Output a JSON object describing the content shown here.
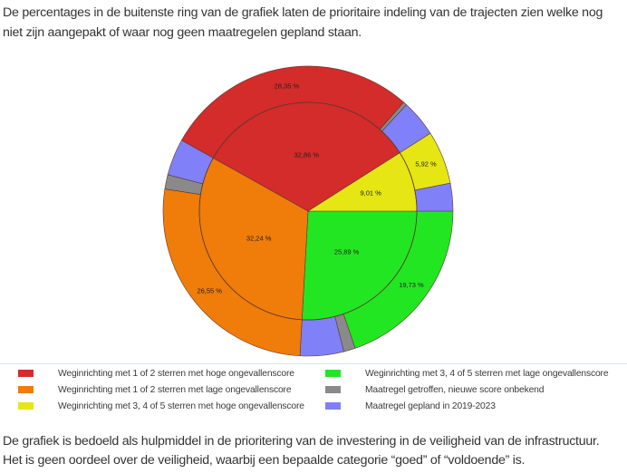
{
  "intro_text": "De percentages in de buitenste ring van de grafiek laten de prioritaire indeling van de trajecten zien welke nog niet zijn aangepakt of waar nog geen maatregelen gepland staan.",
  "outro_line1": "De grafiek is bedoeld als hulpmiddel in de prioritering van de investering in de veiligheid van de infrastructuur.",
  "outro_line2": "Het is geen oordeel over de veiligheid, waarbij een bepaalde categorie “goed” of “voldoende” is.",
  "legend": [
    {
      "label": "Weginrichting met 1 of 2 sterren met hoge ongevallenscore",
      "color": "#d42b2b"
    },
    {
      "label": "Weginrichting met 1 of 2 sterren met lage ongevallenscore",
      "color": "#f07c0a"
    },
    {
      "label": "Weginrichting met 3, 4 of 5 sterren met hoge ongevallenscore",
      "color": "#e6e614"
    },
    {
      "label": "Weginrichting met 3, 4 of 5 sterren met lage ongevallenscore",
      "color": "#22e622"
    },
    {
      "label": "Maatregel getroffen, nieuwe score onbekend",
      "color": "#8a8a8a"
    },
    {
      "label": "Maatregel gepland in 2019-2023",
      "color": "#8080f8"
    }
  ],
  "chart_data": {
    "type": "pie",
    "subtype": "nested-donut",
    "title": "",
    "inner_ring": {
      "categories": [
        "Weginrichting met 3, 4 of 5 sterren met lage ongevallenscore",
        "Weginrichting met 1 of 2 sterren met lage ongevallenscore",
        "Weginrichting met 1 of 2 sterren met hoge ongevallenscore",
        "Weginrichting met 3, 4 of 5 sterren met hoge ongevallenscore"
      ],
      "values": [
        25.89,
        32.24,
        32.86,
        9.01
      ],
      "labels": [
        "25,89 %",
        "32,24 %",
        "32,86 %",
        "9,01 %"
      ],
      "colors": [
        "#22e622",
        "#f07c0a",
        "#d42b2b",
        "#e6e614"
      ]
    },
    "outer_ring": {
      "segments": [
        {
          "parent": "green",
          "category": "Weginrichting met 3, 4 of 5 sterren met lage ongevallenscore",
          "value": 19.73,
          "label": "19,73 %",
          "color": "#22e622"
        },
        {
          "parent": "green",
          "category": "Maatregel getroffen, nieuwe score onbekend",
          "value": 1.3,
          "label": "",
          "color": "#8a8a8a"
        },
        {
          "parent": "green",
          "category": "Maatregel gepland in 2019-2023",
          "value": 4.86,
          "label": "",
          "color": "#8080f8"
        },
        {
          "parent": "orange",
          "category": "Weginrichting met 1 of 2 sterren met lage ongevallenscore",
          "value": 26.55,
          "label": "26,55 %",
          "color": "#f07c0a"
        },
        {
          "parent": "orange",
          "category": "Maatregel getroffen, nieuwe score onbekend",
          "value": 1.6,
          "label": "",
          "color": "#8a8a8a"
        },
        {
          "parent": "orange",
          "category": "Maatregel gepland in 2019-2023",
          "value": 4.09,
          "label": "",
          "color": "#8080f8"
        },
        {
          "parent": "red",
          "category": "Weginrichting met 1 of 2 sterren met hoge ongevallenscore",
          "value": 28.35,
          "label": "28,35 %",
          "color": "#d42b2b"
        },
        {
          "parent": "red",
          "category": "Maatregel getroffen, nieuwe score onbekend",
          "value": 0.4,
          "label": "",
          "color": "#8a8a8a"
        },
        {
          "parent": "red",
          "category": "Maatregel gepland in 2019-2023",
          "value": 4.11,
          "label": "",
          "color": "#8080f8"
        },
        {
          "parent": "yellow",
          "category": "Weginrichting met 3, 4 of 5 sterren met hoge ongevallenscore",
          "value": 5.92,
          "label": "5,92 %",
          "color": "#e6e614"
        },
        {
          "parent": "yellow",
          "category": "Maatregel gepland in 2019-2023",
          "value": 3.09,
          "label": "",
          "color": "#8080f8"
        }
      ]
    },
    "start_angle_deg": 0,
    "direction": "clockwise",
    "legend_position": "bottom"
  }
}
